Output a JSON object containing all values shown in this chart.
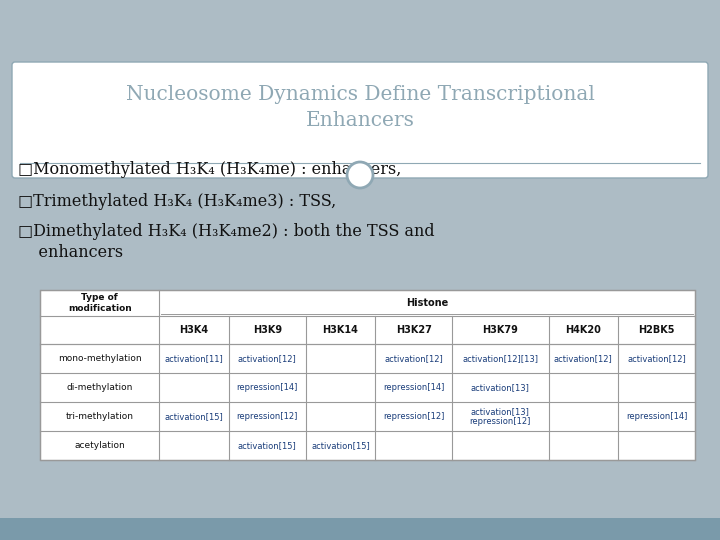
{
  "title_line1": "Nucleosome Dynamics Define Transcriptional",
  "title_line2": "Enhancers",
  "bg_color": "#adbcc5",
  "title_bg": "#ffffff",
  "title_color": "#8fa8b4",
  "bullet_box_color": "#8fa8b4",
  "bullets": [
    "□Monomethylated H₃K₄ (H₃K₄me) : enhancers,",
    "□Trimethylated H₃K₄ (H₃K₄me3) : TSS,",
    "□Dimethylated H₃K₄ (H₃K₄me2) : both the TSS and\n    enhancers"
  ],
  "table": {
    "col_headers": [
      "Type of\nmodification",
      "H3K4",
      "H3K9",
      "H3K14",
      "H3K27",
      "H3K79",
      "H4K20",
      "H2BK5"
    ],
    "group_header": "Histone",
    "rows": [
      [
        "mono-methylation",
        "activation[11]",
        "activation[12]",
        "",
        "activation[12]",
        "activation[12][13]",
        "activation[12]",
        "activation[12]"
      ],
      [
        "di-methylation",
        "",
        "repression[14]",
        "",
        "repression[14]",
        "activation[13]",
        "",
        ""
      ],
      [
        "tri-methylation",
        "activation[15]",
        "repression[12]",
        "",
        "repression[12]",
        "activation[13]\nrepression[12]",
        "",
        "repression[14]"
      ],
      [
        "acetylation",
        "",
        "activation[15]",
        "activation[15]",
        "",
        "",
        "",
        ""
      ]
    ],
    "link_color": "#1a3d7a",
    "header_color": "#111111",
    "table_bg": "#ffffff",
    "border_color": "#999999"
  },
  "footer_color": "#7a9aaa",
  "circle_color": "#8fa8b4"
}
